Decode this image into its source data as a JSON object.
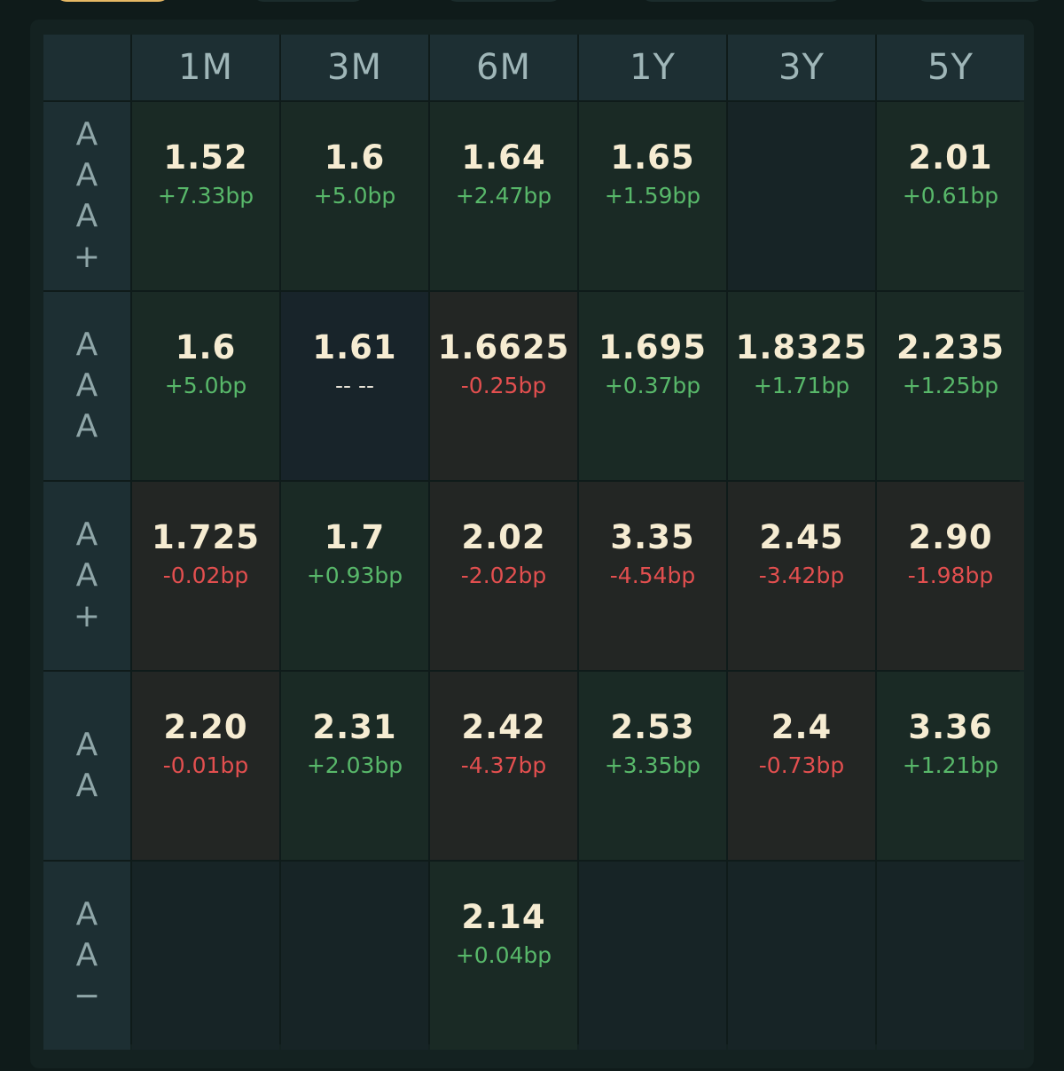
{
  "columns": [
    "1M",
    "3M",
    "6M",
    "1Y",
    "3Y",
    "5Y"
  ],
  "rows": [
    {
      "label": [
        "A",
        "A",
        "A",
        "+"
      ],
      "cells": [
        {
          "value": "1.52",
          "change": "+7.33bp",
          "dir": "up"
        },
        {
          "value": "1.6",
          "change": "+5.0bp",
          "dir": "up"
        },
        {
          "value": "1.64",
          "change": "+2.47bp",
          "dir": "up"
        },
        {
          "value": "1.65",
          "change": "+1.59bp",
          "dir": "up"
        },
        {
          "value": "",
          "change": "",
          "dir": "empty"
        },
        {
          "value": "2.01",
          "change": "+0.61bp",
          "dir": "up"
        }
      ]
    },
    {
      "label": [
        "A",
        "A",
        "A"
      ],
      "cells": [
        {
          "value": "1.6",
          "change": "+5.0bp",
          "dir": "up"
        },
        {
          "value": "1.61",
          "change": "-- --",
          "dir": "flat"
        },
        {
          "value": "1.6625",
          "change": "-0.25bp",
          "dir": "down"
        },
        {
          "value": "1.695",
          "change": "+0.37bp",
          "dir": "up"
        },
        {
          "value": "1.8325",
          "change": "+1.71bp",
          "dir": "up"
        },
        {
          "value": "2.235",
          "change": "+1.25bp",
          "dir": "up"
        }
      ]
    },
    {
      "label": [
        "A",
        "A",
        "+"
      ],
      "cells": [
        {
          "value": "1.725",
          "change": "-0.02bp",
          "dir": "down"
        },
        {
          "value": "1.7",
          "change": "+0.93bp",
          "dir": "up"
        },
        {
          "value": "2.02",
          "change": "-2.02bp",
          "dir": "down"
        },
        {
          "value": "3.35",
          "change": "-4.54bp",
          "dir": "down"
        },
        {
          "value": "2.45",
          "change": "-3.42bp",
          "dir": "down"
        },
        {
          "value": "2.90",
          "change": "-1.98bp",
          "dir": "down"
        }
      ]
    },
    {
      "label": [
        "A",
        "A"
      ],
      "cells": [
        {
          "value": "2.20",
          "change": "-0.01bp",
          "dir": "down"
        },
        {
          "value": "2.31",
          "change": "+2.03bp",
          "dir": "up"
        },
        {
          "value": "2.42",
          "change": "-4.37bp",
          "dir": "down"
        },
        {
          "value": "2.53",
          "change": "+3.35bp",
          "dir": "up"
        },
        {
          "value": "2.4",
          "change": "-0.73bp",
          "dir": "down"
        },
        {
          "value": "3.36",
          "change": "+1.21bp",
          "dir": "up"
        }
      ]
    },
    {
      "label": [
        "A",
        "A",
        "−"
      ],
      "cells": [
        {
          "value": "",
          "change": "",
          "dir": "empty"
        },
        {
          "value": "",
          "change": "",
          "dir": "empty"
        },
        {
          "value": "2.14",
          "change": "+0.04bp",
          "dir": "up"
        },
        {
          "value": "",
          "change": "",
          "dir": "empty"
        },
        {
          "value": "",
          "change": "",
          "dir": "empty"
        },
        {
          "value": "",
          "change": "",
          "dir": "empty"
        }
      ]
    }
  ],
  "colors": {
    "up": "#58b86a",
    "down": "#e24f4f",
    "value": "#f6ecd2",
    "accent_tab_border": "#e6b864"
  }
}
